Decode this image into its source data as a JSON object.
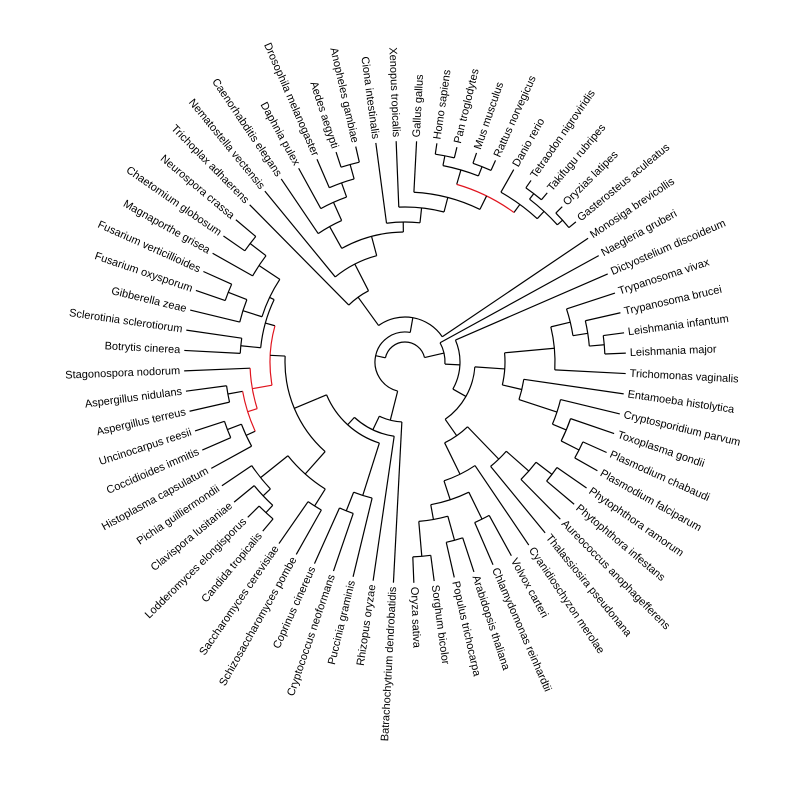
{
  "tree": {
    "type": "circular-phylogeny",
    "branch_color": "#000000",
    "highlight_color": "#e0141e",
    "leaves": [
      "Batrachochytrium dendrobatidis",
      "Rhizopus oryzae",
      "Puccinia graminis",
      "Cryptococcus neoformans",
      "Coprinus cinereus",
      "Schizosaccharomyces pombe",
      "Saccharomyces cerevisiae",
      "Candida tropicalis",
      "Lodderomyces elongisporus",
      "Clavispora lusitaniae",
      "Pichia guilliermondii",
      "Histoplasma capsulatum",
      "Coccidioides immitis",
      "Uncinocarpus reesii",
      "Aspergillus terreus",
      "Aspergillus nidulans",
      "Stagonospora nodorum",
      "Botrytis cinerea",
      "Sclerotinia sclerotiorum",
      "Gibberella zeae",
      "Fusarium oxysporum",
      "Fusarium verticillioides",
      "Magnaporthe grisea",
      "Chaetomium globosum",
      "Neurospora crassa",
      "Trichoplax adhaerens",
      "Nematostella vectensis",
      "Caenorhabditis elegans",
      "Daphnia pulex",
      "Drosophila melanogaster",
      "Aedes aegypti",
      "Anopheles gambiae",
      "Ciona intestinalis",
      "Xenopus tropicalis",
      "Gallus gallus",
      "Homo sapiens",
      "Pan troglodytes",
      "Mus musculus",
      "Rattus norvegicus",
      "Danio rerio",
      "Tetraodon nigroviridis",
      "Takifugu rubripes",
      "Oryzias latipes",
      "Gasterosteus aculeatus",
      "Monosiga brevicollis",
      "Naegleria gruberi",
      "Dictyostelium discoideum",
      "Trypanosoma vivax",
      "Trypanosoma brucei",
      "Leishmania infantum",
      "Leishmania major",
      "Trichomonas vaginalis",
      "Entamoeba histolytica",
      "Cryptosporidium parvum",
      "Toxoplasma gondii",
      "Plasmodium chabaudi",
      "Plasmodium falciparum",
      "Phytophthora ramorum",
      "Phytophthora infestans",
      "Aureococcus anophagefferens",
      "Thalassiosira pseudonana",
      "Cyanidioschyzon merolae",
      "Volvox carteri",
      "Chlamydomonas reinhardtii",
      "Arabidopsis thaliana",
      "Populus trichocarpa",
      "Sorghum bicolor",
      "Oryza sativa"
    ]
  }
}
